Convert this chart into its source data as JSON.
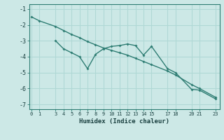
{
  "xlabel": "Humidex (Indice chaleur)",
  "background_color": "#cce8e6",
  "grid_color": "#b0d8d5",
  "line_color": "#2e7d73",
  "xtick_positions": [
    0,
    1,
    3,
    4,
    5,
    6,
    7,
    8,
    9,
    10,
    11,
    12,
    13,
    14,
    15,
    17,
    18,
    20,
    21,
    23
  ],
  "xtick_labels": [
    "0",
    "1",
    "3",
    "4",
    "5",
    "6",
    "7",
    "8",
    "9",
    "10",
    "11",
    "12",
    "13",
    "14",
    "15",
    "17",
    "18",
    "20",
    "21",
    "23"
  ],
  "xlim": [
    -0.3,
    23.5
  ],
  "ylim": [
    -7.3,
    -0.7
  ],
  "yticks": [
    -7,
    -6,
    -5,
    -4,
    -3,
    -2,
    -1
  ],
  "line1_x": [
    0,
    1,
    3,
    4,
    5,
    6,
    7,
    8,
    9,
    10,
    11,
    12,
    13,
    14,
    15,
    17,
    18,
    20,
    21,
    23
  ],
  "line1_y": [
    -1.5,
    -1.75,
    -2.1,
    -2.35,
    -2.6,
    -2.8,
    -3.05,
    -3.25,
    -3.45,
    -3.6,
    -3.75,
    -3.9,
    -4.1,
    -4.3,
    -4.5,
    -4.9,
    -5.15,
    -5.75,
    -6.0,
    -6.55
  ],
  "line2_x": [
    3,
    4,
    5,
    6,
    7,
    8,
    9,
    10,
    11,
    12,
    13,
    14,
    15,
    17,
    18,
    20,
    21,
    23
  ],
  "line2_y": [
    -3.0,
    -3.5,
    -3.75,
    -4.0,
    -4.75,
    -3.85,
    -3.5,
    -3.35,
    -3.3,
    -3.2,
    -3.3,
    -3.9,
    -3.35,
    -4.75,
    -5.0,
    -6.05,
    -6.1,
    -6.65
  ]
}
